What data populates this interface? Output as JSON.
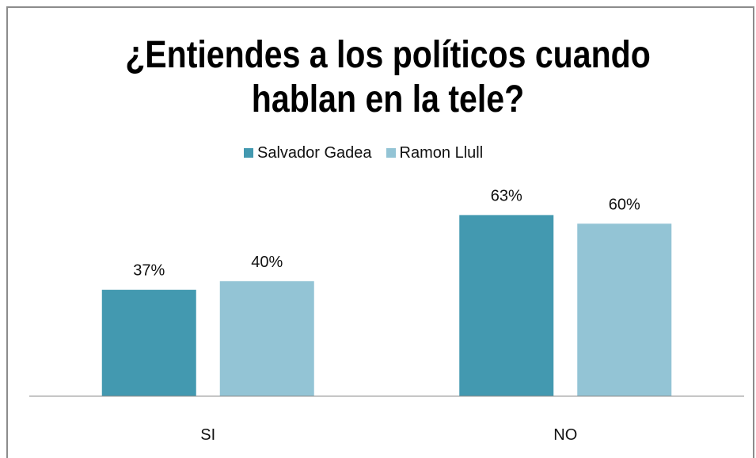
{
  "chart_data": {
    "type": "bar",
    "title": "¿Entiendes a los políticos cuando hablan en la tele?",
    "xlabel": "",
    "ylabel": "",
    "categories": [
      "SI",
      "NO"
    ],
    "series": [
      {
        "name": "Salvador Gadea",
        "values": [
          37,
          63
        ],
        "color": "#4399B0"
      },
      {
        "name": "Ramon Llull",
        "values": [
          40,
          60
        ],
        "color": "#93C4D5"
      }
    ],
    "unit": "%",
    "ylim": [
      0,
      70
    ],
    "grid": false,
    "legend": "top",
    "data_labels": true
  }
}
